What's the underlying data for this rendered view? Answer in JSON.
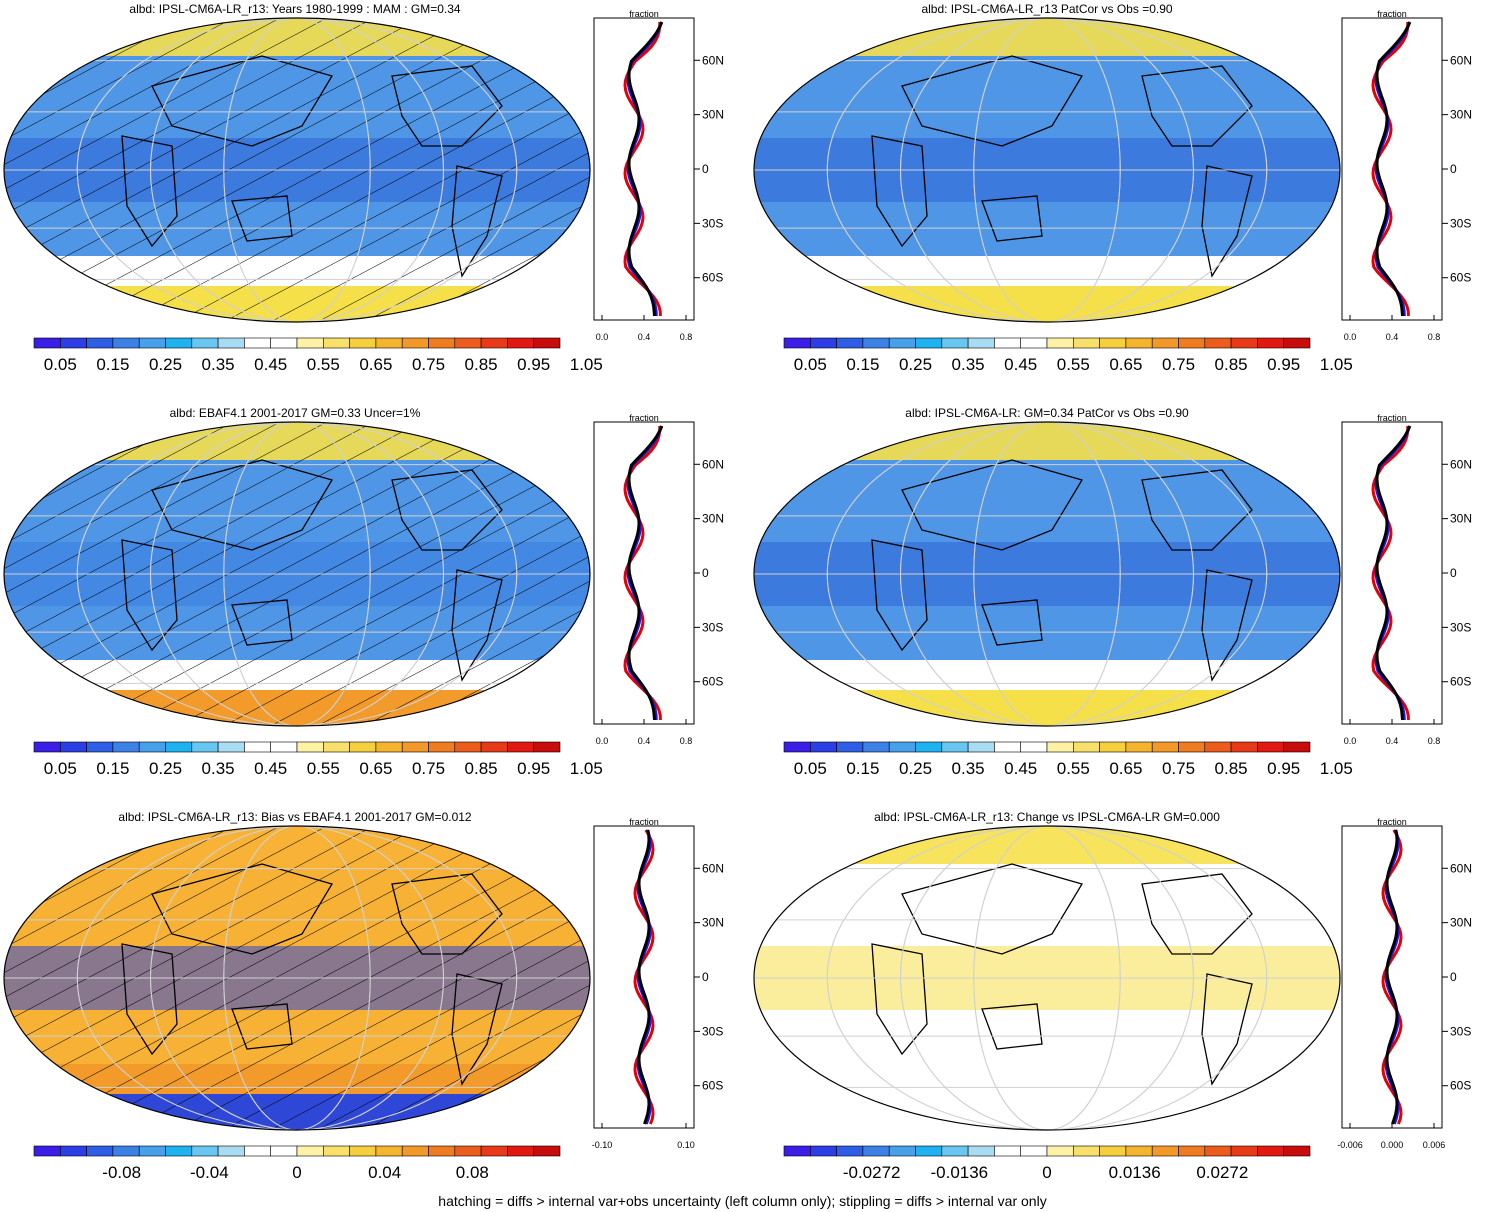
{
  "panels": [
    {
      "id": "p1",
      "title": "albd: IPSL-CM6A-LR_r13: Years 1980-1999 : MAM : GM=0.34",
      "map": {
        "base": "#4f97e6",
        "band": "#2e63d6",
        "south": "#ffffff",
        "antarctic": "#f6e04a",
        "hatched": true
      },
      "profile": {
        "xlabel": "fraction",
        "xticks": [
          "0.0",
          "0.4",
          "0.8"
        ],
        "xrange": [
          0,
          1.0
        ],
        "shifted": true
      },
      "colorbar": {
        "labels": [
          "0.05",
          "0.15",
          "0.25",
          "0.35",
          "0.45",
          "0.55",
          "0.65",
          "0.75",
          "0.85",
          "0.95",
          "1.05"
        ],
        "scheme": "abs"
      }
    },
    {
      "id": "p2",
      "title": "albd: IPSL-CM6A-LR_r13 PatCor vs Obs =0.90",
      "map": {
        "base": "#4f97e6",
        "band": "#2e63d6",
        "south": "#ffffff",
        "antarctic": "#f6e04a",
        "hatched": false
      },
      "profile": {
        "xlabel": "fraction",
        "xticks": [
          "0.0",
          "0.4",
          "0.8"
        ],
        "xrange": [
          0,
          1.0
        ],
        "shifted": true
      },
      "colorbar": {
        "labels": [
          "0.05",
          "0.15",
          "0.25",
          "0.35",
          "0.45",
          "0.55",
          "0.65",
          "0.75",
          "0.85",
          "0.95",
          "1.05"
        ],
        "scheme": "abs"
      }
    },
    {
      "id": "p3",
      "title": "albd: EBAF4.1 2001-2017 GM=0.33 Uncer=1%",
      "map": {
        "base": "#4f97e6",
        "band": "#3b7be0",
        "south": "#ffffff",
        "antarctic": "#f29a2a",
        "hatched": true
      },
      "profile": {
        "xlabel": "fraction",
        "xticks": [
          "0.0",
          "0.4",
          "0.8"
        ],
        "xrange": [
          0,
          1.0
        ],
        "shifted": true
      },
      "colorbar": {
        "labels": [
          "0.05",
          "0.15",
          "0.25",
          "0.35",
          "0.45",
          "0.55",
          "0.65",
          "0.75",
          "0.85",
          "0.95",
          "1.05"
        ],
        "scheme": "abs"
      }
    },
    {
      "id": "p4",
      "title": "albd: IPSL-CM6A-LR: GM=0.34 PatCor vs Obs =0.90",
      "map": {
        "base": "#4f97e6",
        "band": "#2e63d6",
        "south": "#ffffff",
        "antarctic": "#f6e04a",
        "hatched": false
      },
      "profile": {
        "xlabel": "fraction",
        "xticks": [
          "0.0",
          "0.4",
          "0.8"
        ],
        "xrange": [
          0,
          1.0
        ],
        "shifted": true
      },
      "colorbar": {
        "labels": [
          "0.05",
          "0.15",
          "0.25",
          "0.35",
          "0.45",
          "0.55",
          "0.65",
          "0.75",
          "0.85",
          "0.95",
          "1.05"
        ],
        "scheme": "abs"
      }
    },
    {
      "id": "p5",
      "title": "albd: IPSL-CM6A-LR_r13: Bias vs EBAF4.1 2001-2017 GM=0.012",
      "map": {
        "base": "#f7b236",
        "band": "#2e47d6",
        "south": "#f29a2a",
        "antarctic": "#2e47d6",
        "hatched": true
      },
      "profile": {
        "xlabel": "fraction",
        "xticks": [
          "-0.10",
          "0.10"
        ],
        "xrange": [
          -0.15,
          0.15
        ],
        "shifted": false
      },
      "colorbar": {
        "labels": [
          "-0.08",
          "-0.04",
          "0",
          "0.04",
          "0.08"
        ],
        "scheme": "diff"
      }
    },
    {
      "id": "p6",
      "title": "albd: IPSL-CM6A-LR_r13: Change vs IPSL-CM6A-LR GM=0.000",
      "map": {
        "base": "#ffffff",
        "band": "#f6e04a",
        "south": "#ffffff",
        "antarctic": "#ffffff",
        "hatched": false
      },
      "profile": {
        "xlabel": "fraction",
        "xticks": [
          "-0.006",
          "0.000",
          "0.006"
        ],
        "xrange": [
          -0.009,
          0.009
        ],
        "shifted": false
      },
      "colorbar": {
        "labels": [
          "-0.0272",
          "-0.0136",
          "0",
          "0.0136",
          "0.0272"
        ],
        "scheme": "diff"
      }
    }
  ],
  "latitude_labels": [
    "60N",
    "30N",
    "0",
    "30S",
    "60S"
  ],
  "palette": {
    "abs": [
      "#3a1ee6",
      "#2c3ee6",
      "#2f5ee6",
      "#3c82e6",
      "#46a0ea",
      "#1fb2f0",
      "#68c6f0",
      "#a8dcf2",
      "#ffffff",
      "#ffffff",
      "#fff2a6",
      "#f9e06a",
      "#f6cf3f",
      "#f5b42e",
      "#f3992a",
      "#f07c22",
      "#ec5c1c",
      "#e83a18",
      "#e21812",
      "#c80c0c"
    ],
    "diff": [
      "#3a1ee6",
      "#2c3ee6",
      "#2f5ee6",
      "#3c82e6",
      "#46a0ea",
      "#1fb2f0",
      "#68c6f0",
      "#a8dcf2",
      "#ffffff",
      "#ffffff",
      "#fff2a6",
      "#f9e06a",
      "#f6cf3f",
      "#f5b42e",
      "#f3992a",
      "#f07c22",
      "#ec5c1c",
      "#e83a18",
      "#e21812",
      "#c80c0c"
    ]
  },
  "footer": "hatching = diffs > internal var+obs uncertainty (left column only); stippling = diffs > internal var only"
}
